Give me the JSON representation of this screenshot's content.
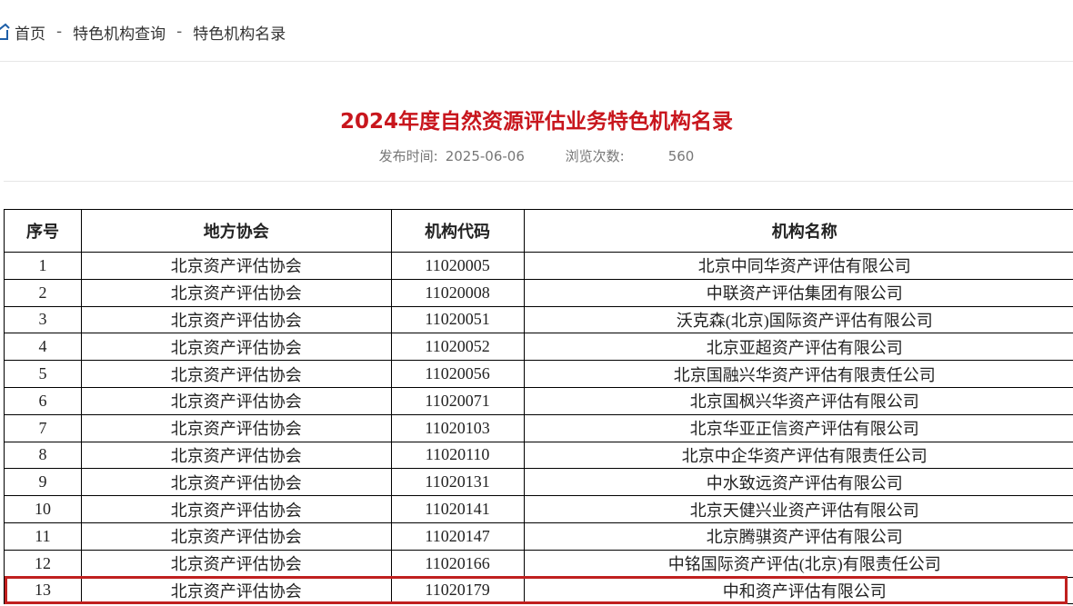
{
  "breadcrumb": {
    "items": [
      "首页",
      "特色机构查询",
      "特色机构名录"
    ],
    "separator": "-"
  },
  "article": {
    "title": "2024年度自然资源评估业务特色机构名录",
    "publish_label": "发布时间:",
    "publish_date": "2025-06-06",
    "views_label": "浏览次数:",
    "views": "560"
  },
  "table": {
    "headers": [
      "序号",
      "地方协会",
      "机构代码",
      "机构名称"
    ],
    "rows": [
      [
        "1",
        "北京资产评估协会",
        "11020005",
        "北京中同华资产评估有限公司"
      ],
      [
        "2",
        "北京资产评估协会",
        "11020008",
        "中联资产评估集团有限公司"
      ],
      [
        "3",
        "北京资产评估协会",
        "11020051",
        "沃克森(北京)国际资产评估有限公司"
      ],
      [
        "4",
        "北京资产评估协会",
        "11020052",
        "北京亚超资产评估有限公司"
      ],
      [
        "5",
        "北京资产评估协会",
        "11020056",
        "北京国融兴华资产评估有限责任公司"
      ],
      [
        "6",
        "北京资产评估协会",
        "11020071",
        "北京国枫兴华资产评估有限公司"
      ],
      [
        "7",
        "北京资产评估协会",
        "11020103",
        "北京华亚正信资产评估有限公司"
      ],
      [
        "8",
        "北京资产评估协会",
        "11020110",
        "北京中企华资产评估有限责任公司"
      ],
      [
        "9",
        "北京资产评估协会",
        "11020131",
        "中水致远资产评估有限公司"
      ],
      [
        "10",
        "北京资产评估协会",
        "11020141",
        "北京天健兴业资产评估有限公司"
      ],
      [
        "11",
        "北京资产评估协会",
        "11020147",
        "北京腾骐资产评估有限公司"
      ],
      [
        "12",
        "北京资产评估协会",
        "11020166",
        "中铭国际资产评估(北京)有限责任公司"
      ],
      [
        "13",
        "北京资产评估协会",
        "11020179",
        "中和资产评估有限公司"
      ]
    ],
    "highlighted_row": "13"
  },
  "colors": {
    "title": "#c8161d",
    "highlight": "#c0201f",
    "home_icon": "#1e5fa8"
  }
}
